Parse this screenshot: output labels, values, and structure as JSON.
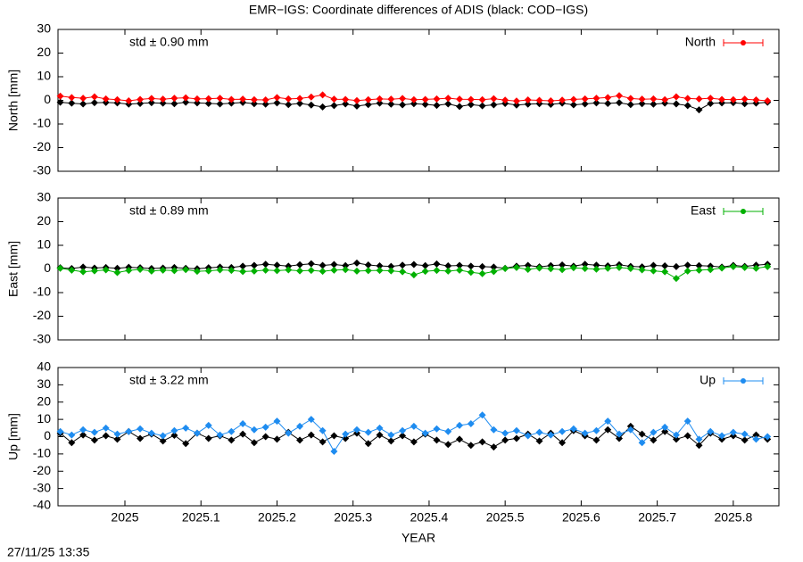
{
  "title": "EMR−IGS: Coordinate differences of ADIS (black: COD−IGS)",
  "timestamp": "27/11/25 13:35",
  "chart_data": [
    {
      "type": "line",
      "ylabel": "North [mm]",
      "annotation": "std ± 0.90 mm",
      "annotation_color": "#ff0000",
      "xlim": [
        2024.912,
        2025.86
      ],
      "xticks": [
        2025,
        2025.1,
        2025.2,
        2025.3,
        2025.4,
        2025.5,
        2025.6,
        2025.7,
        2025.8
      ],
      "ylim": [
        -30,
        30
      ],
      "yticks": [
        30,
        20,
        10,
        0,
        -10,
        -20,
        -30
      ],
      "legend": "top-right",
      "x": [
        2024.915,
        2024.93,
        2024.945,
        2024.96,
        2024.975,
        2024.99,
        2025.005,
        2025.02,
        2025.035,
        2025.05,
        2025.065,
        2025.08,
        2025.095,
        2025.11,
        2025.125,
        2025.14,
        2025.155,
        2025.17,
        2025.185,
        2025.2,
        2025.215,
        2025.23,
        2025.245,
        2025.26,
        2025.275,
        2025.29,
        2025.305,
        2025.32,
        2025.335,
        2025.35,
        2025.365,
        2025.38,
        2025.395,
        2025.41,
        2025.425,
        2025.44,
        2025.455,
        2025.47,
        2025.485,
        2025.5,
        2025.515,
        2025.53,
        2025.545,
        2025.56,
        2025.575,
        2025.59,
        2025.605,
        2025.62,
        2025.635,
        2025.65,
        2025.665,
        2025.68,
        2025.695,
        2025.71,
        2025.725,
        2025.74,
        2025.755,
        2025.77,
        2025.785,
        2025.8,
        2025.815,
        2025.83,
        2025.845
      ],
      "series": [
        {
          "color": "#000000",
          "values": [
            -0.8,
            -1.2,
            -1.5,
            -1.0,
            -0.9,
            -1.1,
            -1.6,
            -1.3,
            -1.0,
            -1.2,
            -1.4,
            -0.8,
            -1.1,
            -1.3,
            -1.5,
            -1.2,
            -0.9,
            -1.4,
            -1.6,
            -1.1,
            -1.8,
            -1.3,
            -2.0,
            -2.8,
            -2.2,
            -1.5,
            -2.4,
            -1.8,
            -1.2,
            -1.6,
            -1.9,
            -1.4,
            -1.7,
            -2.1,
            -1.5,
            -2.6,
            -1.8,
            -2.3,
            -1.9,
            -1.3,
            -2.0,
            -1.6,
            -1.4,
            -1.7,
            -1.2,
            -1.9,
            -1.5,
            -1.1,
            -1.3,
            -1.0,
            -1.8,
            -1.4,
            -1.6,
            -1.2,
            -1.5,
            -2.2,
            -4.0,
            -1.3,
            -1.1,
            -1.0,
            -1.4,
            -1.2,
            -0.8
          ]
        },
        {
          "name": "North",
          "color": "#ff0000",
          "values": [
            1.8,
            1.2,
            0.9,
            1.5,
            0.6,
            0.3,
            -0.2,
            0.4,
            0.8,
            0.5,
            0.9,
            1.1,
            0.6,
            0.7,
            0.9,
            0.4,
            0.5,
            0.3,
            0.2,
            1.2,
            0.6,
            0.8,
            1.4,
            2.3,
            0.5,
            0.4,
            -0.1,
            0.3,
            0.6,
            0.5,
            0.8,
            0.3,
            0.4,
            0.6,
            0.9,
            0.5,
            0.4,
            0.3,
            0.7,
            0.1,
            -0.3,
            0.2,
            0.0,
            -0.2,
            0.1,
            0.4,
            0.6,
            0.9,
            1.2,
            2.0,
            0.8,
            0.5,
            0.6,
            0.3,
            1.5,
            0.8,
            0.6,
            0.9,
            0.4,
            0.3,
            0.5,
            0.2,
            -0.2
          ]
        }
      ]
    },
    {
      "type": "line",
      "ylabel": "East [mm]",
      "annotation": "std ± 0.89 mm",
      "annotation_color": "#00b000",
      "xlim": [
        2024.912,
        2025.86
      ],
      "xticks": [
        2025,
        2025.1,
        2025.2,
        2025.3,
        2025.4,
        2025.5,
        2025.6,
        2025.7,
        2025.8
      ],
      "ylim": [
        -30,
        30
      ],
      "yticks": [
        30,
        20,
        10,
        0,
        -10,
        -20,
        -30
      ],
      "legend": "top-right",
      "x": [
        2024.915,
        2024.93,
        2024.945,
        2024.96,
        2024.975,
        2024.99,
        2025.005,
        2025.02,
        2025.035,
        2025.05,
        2025.065,
        2025.08,
        2025.095,
        2025.11,
        2025.125,
        2025.14,
        2025.155,
        2025.17,
        2025.185,
        2025.2,
        2025.215,
        2025.23,
        2025.245,
        2025.26,
        2025.275,
        2025.29,
        2025.305,
        2025.32,
        2025.335,
        2025.35,
        2025.365,
        2025.38,
        2025.395,
        2025.41,
        2025.425,
        2025.44,
        2025.455,
        2025.47,
        2025.485,
        2025.5,
        2025.515,
        2025.53,
        2025.545,
        2025.56,
        2025.575,
        2025.59,
        2025.605,
        2025.62,
        2025.635,
        2025.65,
        2025.665,
        2025.68,
        2025.695,
        2025.71,
        2025.725,
        2025.74,
        2025.755,
        2025.77,
        2025.785,
        2025.8,
        2025.815,
        2025.83,
        2025.845
      ],
      "series": [
        {
          "color": "#000000",
          "values": [
            0.5,
            0.2,
            0.8,
            0.4,
            0.6,
            0.3,
            0.7,
            0.5,
            0.2,
            0.4,
            0.6,
            0.3,
            0.1,
            0.5,
            0.8,
            0.6,
            1.2,
            1.5,
            2.0,
            1.6,
            1.2,
            1.8,
            2.2,
            1.5,
            1.9,
            1.4,
            2.5,
            1.7,
            1.3,
            1.1,
            1.6,
            1.9,
            1.4,
            2.1,
            1.3,
            1.5,
            1.2,
            1.0,
            0.8,
            0.3,
            1.2,
            1.5,
            0.9,
            1.4,
            1.7,
            1.2,
            2.0,
            1.6,
            1.3,
            1.8,
            1.1,
            0.9,
            1.5,
            1.3,
            1.0,
            1.6,
            1.4,
            1.2,
            0.8,
            1.5,
            1.1,
            1.6,
            2.0
          ]
        },
        {
          "name": "East",
          "color": "#00b000",
          "values": [
            0.3,
            -0.5,
            -1.2,
            -0.8,
            -0.4,
            -1.5,
            -0.6,
            -0.2,
            -0.9,
            -0.5,
            -0.7,
            -0.3,
            -1.0,
            -0.8,
            -0.4,
            -0.6,
            -1.1,
            -0.9,
            -0.5,
            -0.7,
            -0.4,
            -0.8,
            -0.6,
            -1.0,
            -0.5,
            -0.3,
            -0.9,
            -0.7,
            -0.6,
            -0.8,
            -1.2,
            -2.5,
            -1.0,
            -0.6,
            -0.9,
            -0.5,
            -1.4,
            -2.0,
            -1.1,
            0.2,
            0.6,
            -0.2,
            0.4,
            0.1,
            -0.3,
            0.5,
            0.2,
            -0.1,
            0.3,
            0.6,
            0.2,
            -0.4,
            -0.8,
            -1.2,
            -4.0,
            -0.9,
            -0.5,
            -0.3,
            0.4,
            1.0,
            0.6,
            0.3,
            1.0
          ]
        }
      ]
    },
    {
      "type": "line",
      "ylabel": "Up [mm]",
      "xlabel": "YEAR",
      "annotation": "std ± 3.22 mm",
      "annotation_color": "#1e8cf0",
      "xlim": [
        2024.912,
        2025.86
      ],
      "xticks": [
        2025,
        2025.1,
        2025.2,
        2025.3,
        2025.4,
        2025.5,
        2025.6,
        2025.7,
        2025.8
      ],
      "ylim": [
        -40,
        40
      ],
      "yticks": [
        40,
        30,
        20,
        10,
        0,
        -10,
        -20,
        -30,
        -40
      ],
      "legend": "top-right",
      "x": [
        2024.915,
        2024.93,
        2024.945,
        2024.96,
        2024.975,
        2024.99,
        2025.005,
        2025.02,
        2025.035,
        2025.05,
        2025.065,
        2025.08,
        2025.095,
        2025.11,
        2025.125,
        2025.14,
        2025.155,
        2025.17,
        2025.185,
        2025.2,
        2025.215,
        2025.23,
        2025.245,
        2025.26,
        2025.275,
        2025.29,
        2025.305,
        2025.32,
        2025.335,
        2025.35,
        2025.365,
        2025.38,
        2025.395,
        2025.41,
        2025.425,
        2025.44,
        2025.455,
        2025.47,
        2025.485,
        2025.5,
        2025.515,
        2025.53,
        2025.545,
        2025.56,
        2025.575,
        2025.59,
        2025.605,
        2025.62,
        2025.635,
        2025.65,
        2025.665,
        2025.68,
        2025.695,
        2025.71,
        2025.725,
        2025.74,
        2025.755,
        2025.77,
        2025.785,
        2025.8,
        2025.815,
        2025.83,
        2025.845
      ],
      "series": [
        {
          "color": "#000000",
          "values": [
            2.0,
            -3.5,
            1.0,
            -2.0,
            0.5,
            -1.5,
            3.0,
            -1.0,
            1.5,
            -2.5,
            0.8,
            -4.0,
            2.0,
            -1.0,
            0.5,
            -2.0,
            1.5,
            -3.5,
            0.0,
            -1.5,
            2.5,
            -2.0,
            1.0,
            -3.0,
            0.5,
            -1.0,
            2.0,
            -4.0,
            1.0,
            -2.5,
            0.5,
            -3.0,
            1.5,
            -2.0,
            -4.5,
            -1.5,
            -5.0,
            -3.0,
            -6.0,
            -2.0,
            -1.0,
            1.5,
            -2.5,
            2.0,
            -3.5,
            3.5,
            0.5,
            -2.0,
            4.0,
            -1.0,
            6.0,
            1.5,
            -2.0,
            3.0,
            -1.5,
            0.5,
            -5.0,
            2.0,
            -1.5,
            0.5,
            -2.0,
            1.0,
            -1.5
          ]
        },
        {
          "name": "Up",
          "color": "#1e8cf0",
          "values": [
            3.0,
            1.0,
            4.0,
            2.5,
            5.0,
            1.5,
            3.0,
            4.5,
            2.0,
            0.5,
            3.5,
            5.0,
            2.0,
            6.5,
            1.0,
            3.0,
            7.5,
            4.0,
            5.5,
            9.0,
            2.0,
            6.0,
            10.0,
            3.5,
            -8.5,
            1.5,
            4.0,
            2.5,
            5.0,
            1.0,
            3.5,
            6.0,
            2.0,
            4.5,
            3.0,
            6.5,
            7.5,
            12.5,
            4.0,
            2.0,
            3.5,
            0.5,
            2.5,
            1.0,
            3.0,
            4.5,
            2.0,
            3.5,
            9.0,
            1.5,
            4.0,
            -3.5,
            2.5,
            5.5,
            1.0,
            9.0,
            -1.5,
            3.0,
            0.5,
            2.5,
            1.5,
            -1.5,
            0.0
          ]
        }
      ]
    }
  ]
}
